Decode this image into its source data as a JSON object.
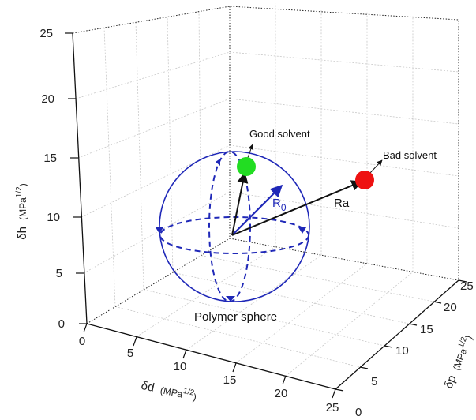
{
  "axes": {
    "dh": {
      "label": "δh",
      "unit": "(MPa",
      "sup": "1/2",
      "close": ")",
      "ticks": [
        "0",
        "5",
        "10",
        "15",
        "20",
        "25"
      ]
    },
    "dd": {
      "label": "δd",
      "unit": "(MPa",
      "sup": "1/2",
      "close": ")",
      "ticks": [
        "0",
        "5",
        "10",
        "15",
        "20",
        "25"
      ]
    },
    "dp": {
      "label": "δp",
      "unit": "(MPa",
      "sup": "1/2",
      "close": ")",
      "ticks": [
        "0",
        "5",
        "10",
        "15",
        "20",
        "25"
      ]
    }
  },
  "annotations": {
    "good_solvent": "Good solvent",
    "bad_solvent": "Bad solvent",
    "r0_main": "R",
    "r0_sub": "0",
    "ra": "Ra",
    "polymer_sphere": "Polymer sphere"
  },
  "colors": {
    "sphere": "#1f28b8",
    "good_solvent": "#22dd22",
    "bad_solvent": "#ee1111",
    "arrows": "#111111"
  }
}
